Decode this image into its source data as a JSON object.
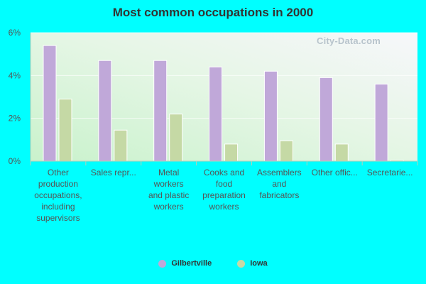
{
  "colors": {
    "series1": "#c0a8d9",
    "series2": "#c5d9a5",
    "background": "#00ffff"
  },
  "watermark": "City-Data.com",
  "chart_data": {
    "type": "bar",
    "title": "Most common occupations in 2000",
    "xlabel": "",
    "ylabel": "",
    "ylim": [
      0,
      6
    ],
    "yticks": [
      "0%",
      "2%",
      "4%",
      "6%"
    ],
    "yticks_values": [
      0,
      2,
      4,
      6
    ],
    "categories": [
      [
        "Other",
        "production",
        "occupations,",
        "including",
        "supervisors"
      ],
      [
        "Sales repr..."
      ],
      [
        "Metal",
        "workers",
        "and plastic",
        "workers"
      ],
      [
        "Cooks and",
        "food",
        "preparation",
        "workers"
      ],
      [
        "Assemblers",
        "and",
        "fabricators"
      ],
      [
        "Other offic..."
      ],
      [
        "Secretarie..."
      ]
    ],
    "series": [
      {
        "name": "Gilbertville",
        "values": [
          5.4,
          4.7,
          4.7,
          4.4,
          4.2,
          3.9,
          3.6
        ]
      },
      {
        "name": "Iowa",
        "values": [
          2.9,
          1.45,
          2.2,
          0.8,
          0.95,
          0.8,
          0.05
        ]
      }
    ],
    "legend_position": "bottom"
  }
}
